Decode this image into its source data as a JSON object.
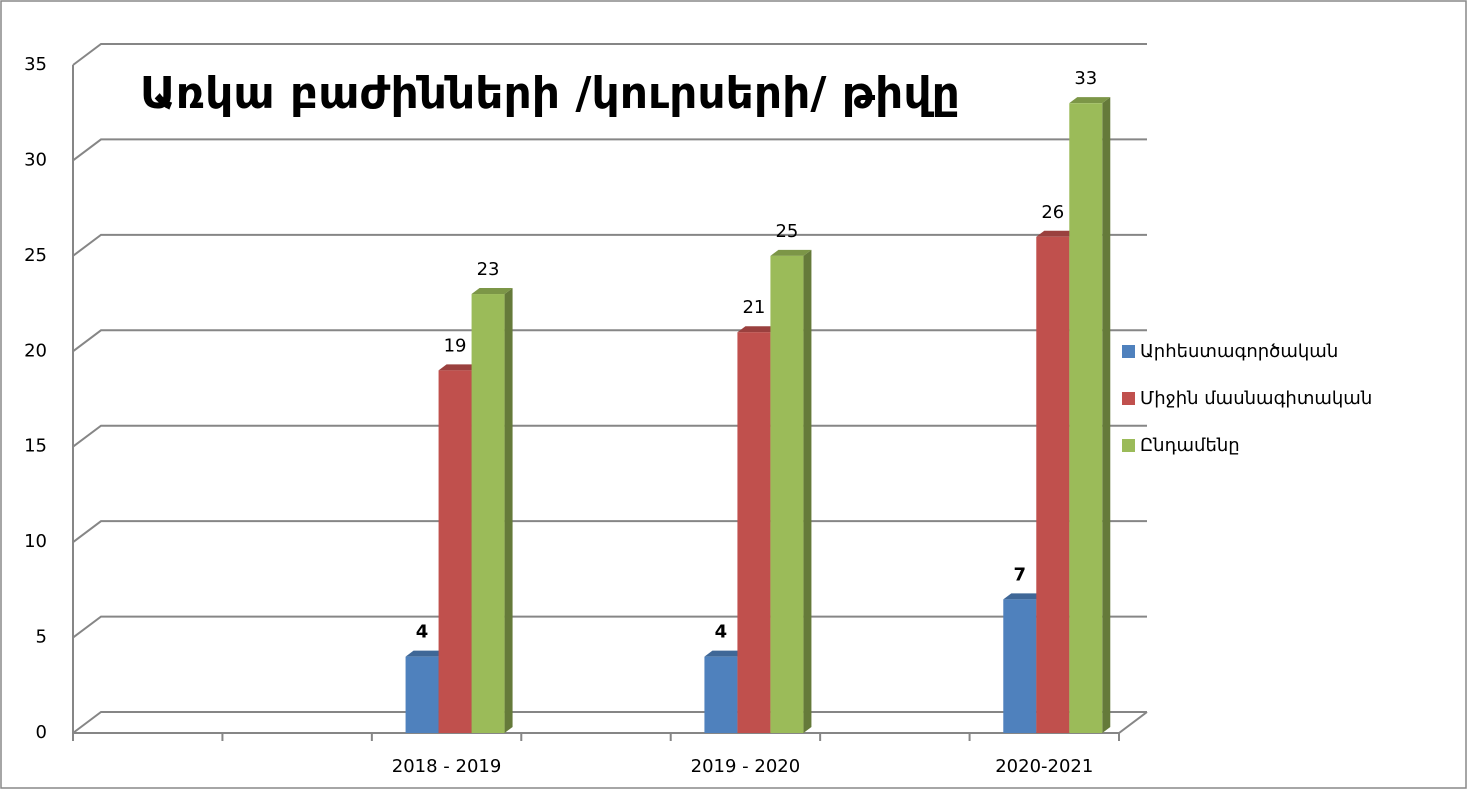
{
  "chart_data": {
    "type": "bar3d",
    "title": "Առկա  բաժինների /կուրսերի/ թիվը",
    "title_color": "#c00000",
    "categories": [
      null,
      null,
      "2018 - 2019",
      null,
      "2019 - 2020",
      null,
      "2020-2021"
    ],
    "category_color": "#c00000",
    "series": [
      {
        "name": "Արհեստագործական",
        "color": "#4f81bd",
        "label_color": "#558ed5",
        "values": [
          null,
          null,
          4,
          null,
          4,
          null,
          7
        ]
      },
      {
        "name": "Միջին մասնագիտական",
        "color": "#c0504d",
        "label_color": "#c00000",
        "values": [
          null,
          null,
          19,
          null,
          21,
          null,
          26
        ]
      },
      {
        "name": "Ընդամենը",
        "color": "#9bbb59",
        "label_color": "#00b050",
        "values": [
          null,
          null,
          23,
          null,
          25,
          null,
          33
        ]
      }
    ],
    "ylim": [
      0,
      35
    ],
    "yticks": [
      0,
      5,
      10,
      15,
      20,
      25,
      30,
      35
    ],
    "grid": true,
    "legend": "right"
  }
}
